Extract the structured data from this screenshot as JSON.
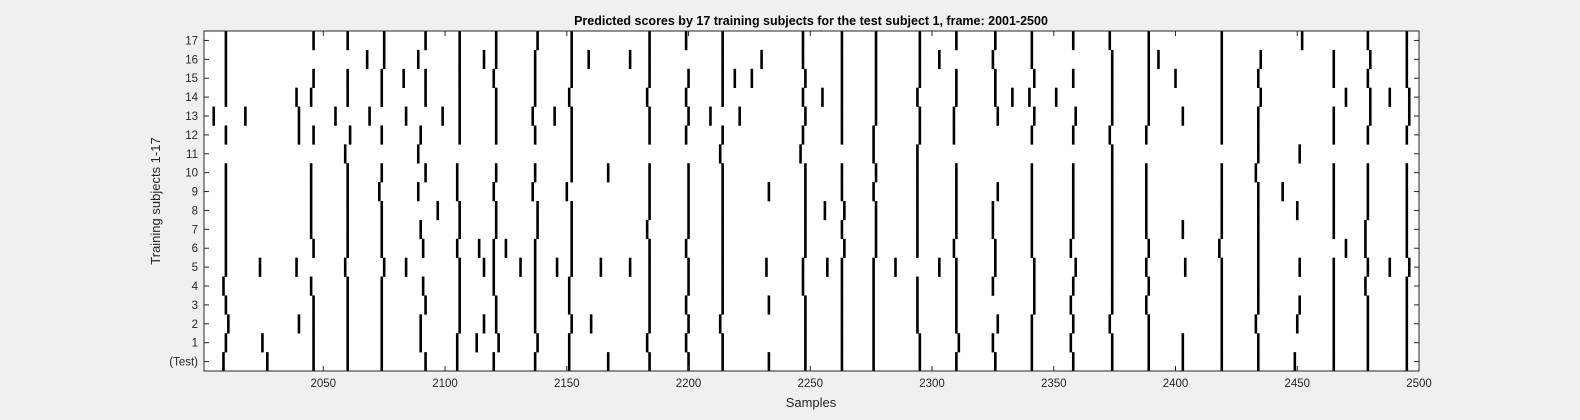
{
  "chart_data": {
    "type": "heatmap",
    "title": "Predicted scores by 17 training subjects for the test subject 1, frame: 2001-2500",
    "xlabel": "Samples",
    "ylabel": "Training subjects 1-17",
    "xlim": [
      2001,
      2500
    ],
    "xticks": [
      2050,
      2100,
      2150,
      2200,
      2250,
      2300,
      2350,
      2400,
      2450,
      2500
    ],
    "rows": [
      "(Test)",
      "1",
      "2",
      "3",
      "4",
      "5",
      "6",
      "7",
      "8",
      "9",
      "10",
      "11",
      "12",
      "13",
      "14",
      "15",
      "16",
      "17"
    ],
    "series": [
      {
        "row": "(Test)",
        "x": [
          2009,
          2027,
          2046,
          2060,
          2074,
          2092,
          2105,
          2120,
          2137,
          2151,
          2167,
          2184,
          2200,
          2214,
          2233,
          2248,
          2263,
          2276,
          2295,
          2310,
          2326,
          2341,
          2358,
          2374,
          2389,
          2403,
          2419,
          2434,
          2449,
          2465,
          2479,
          2495
        ]
      },
      {
        "row": "1",
        "x": [
          2010,
          2025,
          2046,
          2060,
          2074,
          2090,
          2105,
          2113,
          2122,
          2138,
          2151,
          2183,
          2199,
          2214,
          2248,
          2263,
          2276,
          2295,
          2311,
          2325,
          2341,
          2357,
          2374,
          2389,
          2403,
          2419,
          2434,
          2465,
          2479,
          2495
        ]
      },
      {
        "row": "2",
        "x": [
          2011,
          2040,
          2046,
          2060,
          2074,
          2090,
          2106,
          2116,
          2121,
          2137,
          2152,
          2160,
          2184,
          2200,
          2213,
          2248,
          2263,
          2276,
          2294,
          2310,
          2327,
          2341,
          2358,
          2373,
          2389,
          2419,
          2433,
          2450,
          2465,
          2479,
          2495
        ]
      },
      {
        "row": "3",
        "x": [
          2010,
          2046,
          2060,
          2074,
          2092,
          2106,
          2121,
          2137,
          2151,
          2184,
          2199,
          2214,
          2233,
          2248,
          2263,
          2276,
          2294,
          2310,
          2342,
          2357,
          2374,
          2388,
          2419,
          2434,
          2451,
          2465,
          2479,
          2495
        ]
      },
      {
        "row": "4",
        "x": [
          2009,
          2045,
          2060,
          2074,
          2091,
          2106,
          2120,
          2137,
          2151,
          2184,
          2200,
          2214,
          2247,
          2263,
          2276,
          2294,
          2310,
          2325,
          2342,
          2358,
          2374,
          2389,
          2419,
          2434,
          2465,
          2478,
          2495
        ]
      },
      {
        "row": "5",
        "x": [
          2010,
          2024,
          2039,
          2059,
          2075,
          2084,
          2106,
          2116,
          2120,
          2131,
          2137,
          2146,
          2152,
          2164,
          2176,
          2184,
          2200,
          2214,
          2232,
          2247,
          2257,
          2263,
          2276,
          2285,
          2303,
          2310,
          2326,
          2342,
          2359,
          2374,
          2388,
          2404,
          2419,
          2434,
          2451,
          2465,
          2479,
          2488,
          2496
        ]
      },
      {
        "row": "6",
        "x": [
          2010,
          2046,
          2060,
          2074,
          2091,
          2105,
          2114,
          2120,
          2125,
          2137,
          2152,
          2184,
          2199,
          2214,
          2248,
          2264,
          2277,
          2294,
          2309,
          2326,
          2341,
          2357,
          2374,
          2389,
          2418,
          2434,
          2470,
          2478,
          2495
        ]
      },
      {
        "row": "7",
        "x": [
          2010,
          2045,
          2060,
          2074,
          2090,
          2106,
          2121,
          2138,
          2152,
          2183,
          2200,
          2214,
          2248,
          2263,
          2277,
          2294,
          2310,
          2325,
          2341,
          2358,
          2374,
          2388,
          2403,
          2419,
          2434,
          2465,
          2478,
          2495
        ]
      },
      {
        "row": "8",
        "x": [
          2010,
          2045,
          2060,
          2074,
          2097,
          2106,
          2121,
          2138,
          2152,
          2184,
          2200,
          2214,
          2248,
          2256,
          2264,
          2277,
          2294,
          2310,
          2325,
          2341,
          2358,
          2374,
          2388,
          2419,
          2434,
          2450,
          2465,
          2479,
          2495
        ]
      },
      {
        "row": "9",
        "x": [
          2010,
          2045,
          2060,
          2073,
          2089,
          2105,
          2120,
          2136,
          2150,
          2184,
          2200,
          2214,
          2233,
          2248,
          2263,
          2276,
          2294,
          2310,
          2327,
          2341,
          2358,
          2374,
          2388,
          2419,
          2434,
          2444,
          2465,
          2479,
          2495
        ]
      },
      {
        "row": "10",
        "x": [
          2010,
          2045,
          2060,
          2074,
          2092,
          2105,
          2121,
          2137,
          2152,
          2167,
          2184,
          2200,
          2214,
          2248,
          2263,
          2277,
          2294,
          2310,
          2341,
          2358,
          2374,
          2388,
          2419,
          2433,
          2465,
          2479,
          2495
        ]
      },
      {
        "row": "11",
        "x": [
          2059,
          2089,
          2152,
          2213,
          2246,
          2276,
          2294,
          2374,
          2434,
          2451
        ]
      },
      {
        "row": "12",
        "x": [
          2010,
          2040,
          2046,
          2061,
          2074,
          2090,
          2106,
          2121,
          2137,
          2152,
          2184,
          2199,
          2214,
          2247,
          2263,
          2276,
          2295,
          2309,
          2341,
          2358,
          2373,
          2388,
          2419,
          2434,
          2465,
          2479,
          2495
        ]
      },
      {
        "row": "13",
        "x": [
          2005,
          2018,
          2040,
          2055,
          2069,
          2084,
          2099,
          2106,
          2121,
          2136,
          2145,
          2152,
          2184,
          2200,
          2209,
          2221,
          2248,
          2263,
          2277,
          2295,
          2309,
          2327,
          2342,
          2359,
          2374,
          2389,
          2403,
          2419,
          2434,
          2465,
          2480,
          2496
        ]
      },
      {
        "row": "14",
        "x": [
          2010,
          2039,
          2045,
          2060,
          2074,
          2092,
          2106,
          2121,
          2137,
          2151,
          2183,
          2199,
          2214,
          2247,
          2255,
          2263,
          2277,
          2294,
          2310,
          2326,
          2333,
          2340,
          2351,
          2374,
          2389,
          2419,
          2435,
          2470,
          2480,
          2488,
          2496
        ]
      },
      {
        "row": "15",
        "x": [
          2010,
          2046,
          2060,
          2074,
          2083,
          2092,
          2106,
          2120,
          2137,
          2152,
          2184,
          2200,
          2214,
          2219,
          2226,
          2248,
          2263,
          2277,
          2295,
          2310,
          2326,
          2342,
          2358,
          2374,
          2389,
          2400,
          2419,
          2434,
          2465,
          2479,
          2495
        ]
      },
      {
        "row": "16",
        "x": [
          2010,
          2068,
          2075,
          2089,
          2106,
          2116,
          2121,
          2137,
          2152,
          2159,
          2176,
          2184,
          2214,
          2230,
          2247,
          2263,
          2277,
          2295,
          2303,
          2325,
          2341,
          2374,
          2389,
          2393,
          2419,
          2435,
          2465,
          2480,
          2495
        ]
      },
      {
        "row": "17",
        "x": [
          2010,
          2046,
          2060,
          2075,
          2092,
          2106,
          2121,
          2138,
          2152,
          2184,
          2199,
          2214,
          2247,
          2263,
          2277,
          2295,
          2310,
          2326,
          2341,
          2358,
          2373,
          2389,
          2419,
          2452,
          2479,
          2495
        ]
      }
    ]
  }
}
